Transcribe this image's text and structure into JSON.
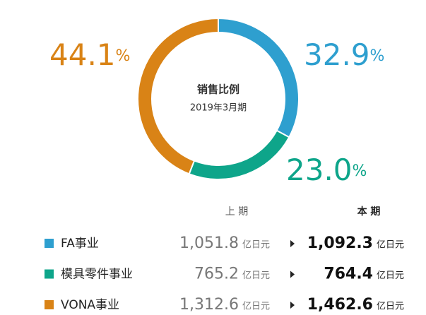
{
  "chart_data": {
    "type": "donut",
    "title": "销售比例",
    "subtitle": "2019年3月期",
    "categories": [
      "FA事业",
      "模具零件事业",
      "VONA事业"
    ],
    "values": [
      32.9,
      23.0,
      44.1
    ],
    "value_labels": [
      "32.9",
      "23.0",
      "44.1"
    ],
    "unit": "%",
    "colors": [
      "#2e9fcf",
      "#0ea58a",
      "#d98316"
    ]
  },
  "table": {
    "headers": [
      "上 期",
      "本 期"
    ],
    "unit": "亿日元",
    "rows": [
      {
        "previous": "1,051.8",
        "current": "1,092.3"
      },
      {
        "previous": "765.2",
        "current": "764.4"
      },
      {
        "previous": "1,312.6",
        "current": "1,462.6"
      }
    ]
  }
}
